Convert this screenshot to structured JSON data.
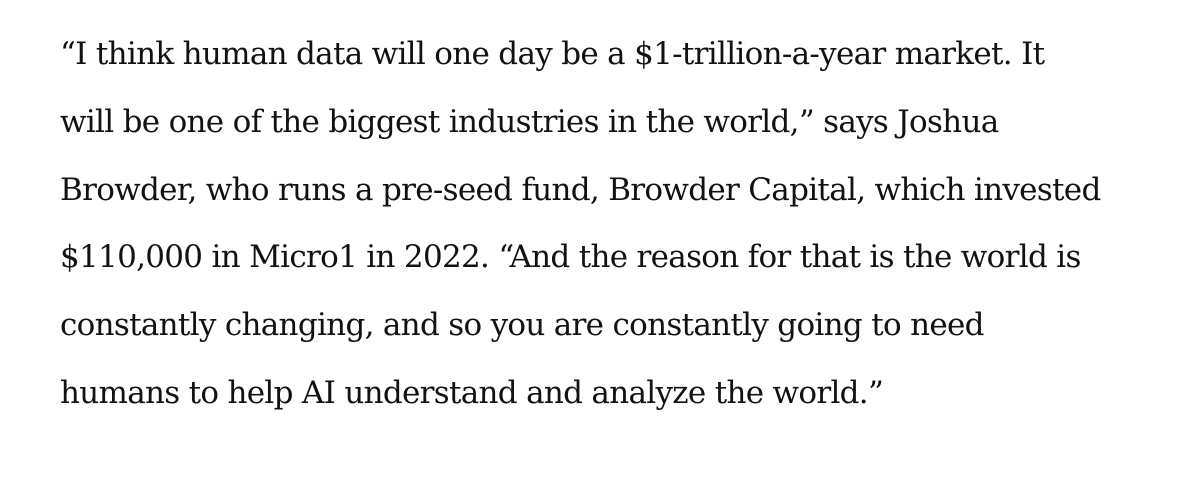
{
  "article": {
    "paragraph_lines": [
      "“I think human data will one day be a $1-trillion-a-year market. It",
      "will be one of the biggest industries in the world,” says Joshua",
      "Browder, who runs a pre-seed fund, Browder Capital, which invested",
      "$110,000 in Micro1 in 2022. “And the reason for that is the world is",
      "constantly changing, and so you are constantly going to need",
      "humans to help AI understand and analyze the world.”"
    ]
  }
}
